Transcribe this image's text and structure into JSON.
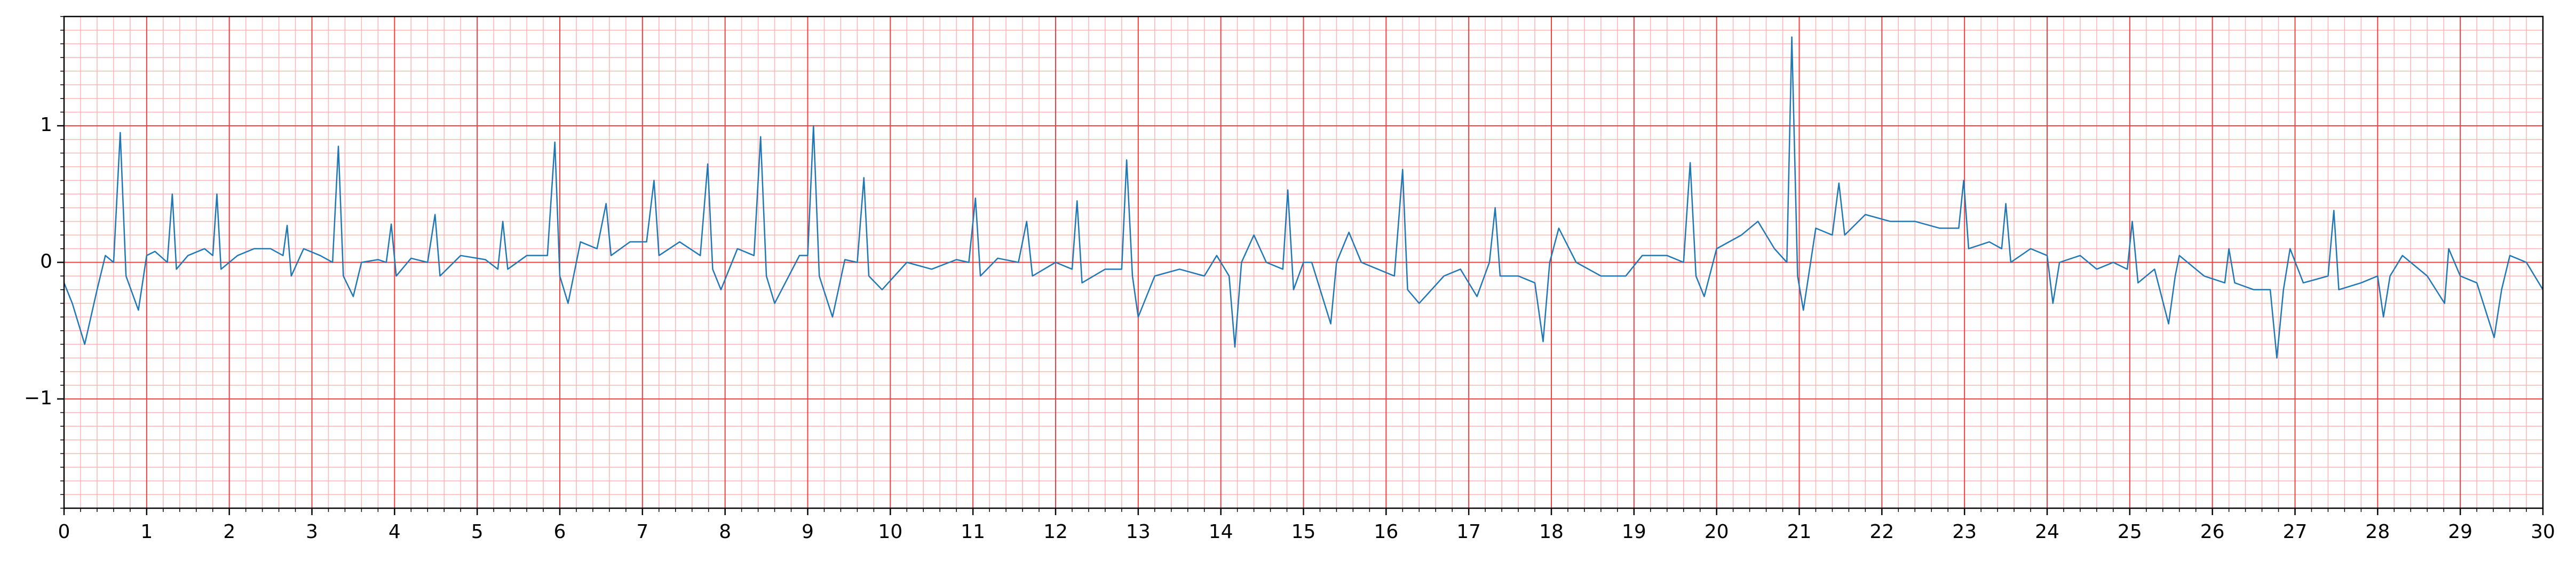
{
  "chart_data": {
    "type": "line",
    "color": "#1f77b4",
    "x": [
      0,
      0.1,
      0.25,
      0.4,
      0.5,
      0.6,
      0.68,
      0.75,
      0.9,
      1.0,
      1.1,
      1.25,
      1.31,
      1.36,
      1.5,
      1.7,
      1.8,
      1.85,
      1.9,
      2.1,
      2.3,
      2.5,
      2.65,
      2.7,
      2.75,
      2.9,
      3.1,
      3.25,
      3.32,
      3.38,
      3.5,
      3.6,
      3.8,
      3.9,
      3.96,
      4.02,
      4.2,
      4.4,
      4.49,
      4.55,
      4.8,
      5.1,
      5.25,
      5.31,
      5.37,
      5.6,
      5.85,
      5.94,
      6.0,
      6.1,
      6.25,
      6.45,
      6.56,
      6.62,
      6.85,
      7.05,
      7.14,
      7.2,
      7.45,
      7.7,
      7.79,
      7.85,
      7.95,
      8.15,
      8.35,
      8.43,
      8.5,
      8.6,
      8.9,
      9.0,
      9.07,
      9.14,
      9.3,
      9.45,
      9.6,
      9.68,
      9.74,
      9.9,
      10.2,
      10.5,
      10.8,
      10.95,
      11.03,
      11.09,
      11.3,
      11.55,
      11.65,
      11.72,
      12.0,
      12.2,
      12.26,
      12.32,
      12.6,
      12.8,
      12.86,
      12.93,
      13.0,
      13.2,
      13.5,
      13.8,
      13.95,
      14.1,
      14.17,
      14.25,
      14.4,
      14.55,
      14.75,
      14.81,
      14.88,
      15.0,
      15.1,
      15.33,
      15.4,
      15.55,
      15.7,
      15.9,
      16.1,
      16.2,
      16.26,
      16.4,
      16.7,
      16.9,
      17.1,
      17.25,
      17.32,
      17.38,
      17.6,
      17.8,
      17.9,
      17.98,
      18.09,
      18.3,
      18.6,
      18.9,
      19.1,
      19.4,
      19.6,
      19.68,
      19.75,
      19.85,
      20.0,
      20.3,
      20.5,
      20.7,
      20.85,
      20.91,
      20.98,
      21.05,
      21.2,
      21.4,
      21.48,
      21.55,
      21.8,
      22.1,
      22.4,
      22.7,
      22.93,
      22.99,
      23.05,
      23.3,
      23.45,
      23.5,
      23.56,
      23.8,
      24.0,
      24.07,
      24.15,
      24.4,
      24.6,
      24.8,
      24.97,
      25.03,
      25.1,
      25.3,
      25.47,
      25.55,
      25.6,
      25.9,
      26.15,
      26.2,
      26.27,
      26.5,
      26.7,
      26.78,
      26.86,
      26.94,
      27.1,
      27.4,
      27.47,
      27.53,
      27.8,
      28.0,
      28.07,
      28.15,
      28.3,
      28.6,
      28.81,
      28.86,
      29.0,
      29.2,
      29.41,
      29.5,
      29.6,
      29.8,
      30.0
    ],
    "values": [
      -0.15,
      -0.3,
      -0.6,
      -0.2,
      0.05,
      0.0,
      0.95,
      -0.1,
      -0.35,
      0.05,
      0.08,
      0.0,
      0.5,
      -0.05,
      0.05,
      0.1,
      0.05,
      0.5,
      -0.05,
      0.05,
      0.1,
      0.1,
      0.05,
      0.27,
      -0.1,
      0.1,
      0.05,
      0.0,
      0.85,
      -0.1,
      -0.25,
      0.0,
      0.02,
      0.0,
      0.28,
      -0.1,
      0.03,
      0.0,
      0.35,
      -0.1,
      0.05,
      0.02,
      -0.05,
      0.3,
      -0.05,
      0.05,
      0.05,
      0.88,
      -0.1,
      -0.3,
      0.15,
      0.1,
      0.43,
      0.05,
      0.15,
      0.15,
      0.6,
      0.05,
      0.15,
      0.05,
      0.72,
      -0.05,
      -0.2,
      0.1,
      0.05,
      0.92,
      -0.1,
      -0.3,
      0.05,
      0.05,
      1.0,
      -0.1,
      -0.4,
      0.02,
      0.0,
      0.62,
      -0.1,
      -0.2,
      0.0,
      -0.05,
      0.02,
      0.0,
      0.47,
      -0.1,
      0.03,
      0.0,
      0.3,
      -0.1,
      0.0,
      -0.05,
      0.45,
      -0.15,
      -0.05,
      -0.05,
      0.75,
      -0.1,
      -0.4,
      -0.1,
      -0.05,
      -0.1,
      0.05,
      -0.1,
      -0.62,
      0.0,
      0.2,
      0.0,
      -0.05,
      0.53,
      -0.2,
      0.0,
      0.0,
      -0.45,
      0.0,
      0.22,
      0.0,
      -0.05,
      -0.1,
      0.68,
      -0.2,
      -0.3,
      -0.1,
      -0.05,
      -0.25,
      0.0,
      0.4,
      -0.1,
      -0.1,
      -0.15,
      -0.58,
      0.0,
      0.25,
      0.0,
      -0.1,
      -0.1,
      0.05,
      0.05,
      0.0,
      0.73,
      -0.1,
      -0.25,
      0.1,
      0.2,
      0.3,
      0.1,
      0.0,
      1.65,
      -0.1,
      -0.35,
      0.25,
      0.2,
      0.58,
      0.2,
      0.35,
      0.3,
      0.3,
      0.25,
      0.25,
      0.6,
      0.1,
      0.15,
      0.1,
      0.43,
      0.0,
      0.1,
      0.05,
      -0.3,
      0.0,
      0.05,
      -0.05,
      0.0,
      -0.05,
      0.3,
      -0.15,
      -0.05,
      -0.45,
      -0.1,
      0.05,
      -0.1,
      -0.15,
      0.1,
      -0.15,
      -0.2,
      -0.2,
      -0.7,
      -0.2,
      0.1,
      -0.15,
      -0.1,
      0.38,
      -0.2,
      -0.15,
      -0.1,
      -0.4,
      -0.1,
      0.05,
      -0.1,
      -0.3,
      0.1,
      -0.1,
      -0.15,
      -0.55,
      -0.2,
      0.05,
      0.0,
      -0.2
    ],
    "xlim": [
      0,
      30
    ],
    "ylim": [
      -1.8,
      1.8
    ],
    "xticks": [
      0,
      1,
      2,
      3,
      4,
      5,
      6,
      7,
      8,
      9,
      10,
      11,
      12,
      13,
      14,
      15,
      16,
      17,
      18,
      19,
      20,
      21,
      22,
      23,
      24,
      25,
      26,
      27,
      28,
      29,
      30
    ],
    "yticks": [
      {
        "value": -1,
        "label": "−1"
      },
      0,
      1
    ],
    "grid": true,
    "minor_grid": true
  }
}
